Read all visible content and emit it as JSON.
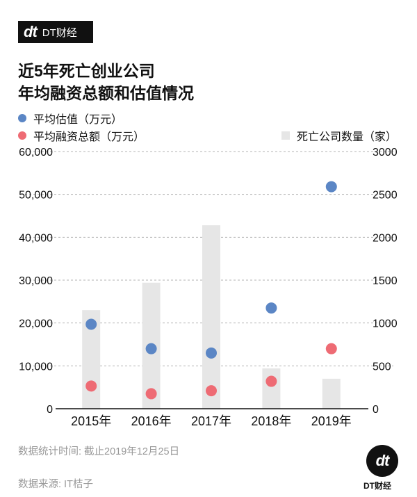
{
  "brand": {
    "logo_mark": "dt",
    "logo_text": "DT财经",
    "caption": "DT财经"
  },
  "title_line1": "近5年死亡创业公司",
  "title_line2": "年均融资总额和估值情况",
  "legend": {
    "valuation": "平均估值（万元）",
    "funding": "平均融资总额（万元）",
    "deaths": "死亡公司数量（家）"
  },
  "colors": {
    "valuation": "#5b86c5",
    "funding": "#ee6b74",
    "deaths": "#e6e6e6",
    "grid": "#b3b3b3"
  },
  "footnotes": {
    "stat_time": "数据统计时间: 截止2019年12月25日",
    "source": "数据来源: IT桔子"
  },
  "chart_data": {
    "type": "bar",
    "categories": [
      "2015年",
      "2016年",
      "2017年",
      "2018年",
      "2019年"
    ],
    "series": [
      {
        "name": "死亡公司数量（家）",
        "kind": "bar",
        "axis": "right",
        "values": [
          1150,
          1470,
          2140,
          470,
          350
        ]
      },
      {
        "name": "平均估值（万元）",
        "kind": "scatter",
        "axis": "left",
        "values": [
          19700,
          14000,
          13000,
          23500,
          51800
        ]
      },
      {
        "name": "平均融资总额（万元）",
        "kind": "scatter",
        "axis": "left",
        "values": [
          5300,
          3500,
          4200,
          6400,
          14000
        ]
      }
    ],
    "y_left": {
      "min": 0,
      "max": 60000,
      "ticks": [
        "0",
        "10,000",
        "20,000",
        "30,000",
        "40,000",
        "50,000",
        "60,000"
      ]
    },
    "y_right": {
      "min": 0,
      "max": 3000,
      "ticks": [
        "0",
        "500",
        "1000",
        "1500",
        "2000",
        "2500",
        "3000"
      ]
    },
    "grid": "dashed horizontal",
    "legend_position": "top-left"
  }
}
